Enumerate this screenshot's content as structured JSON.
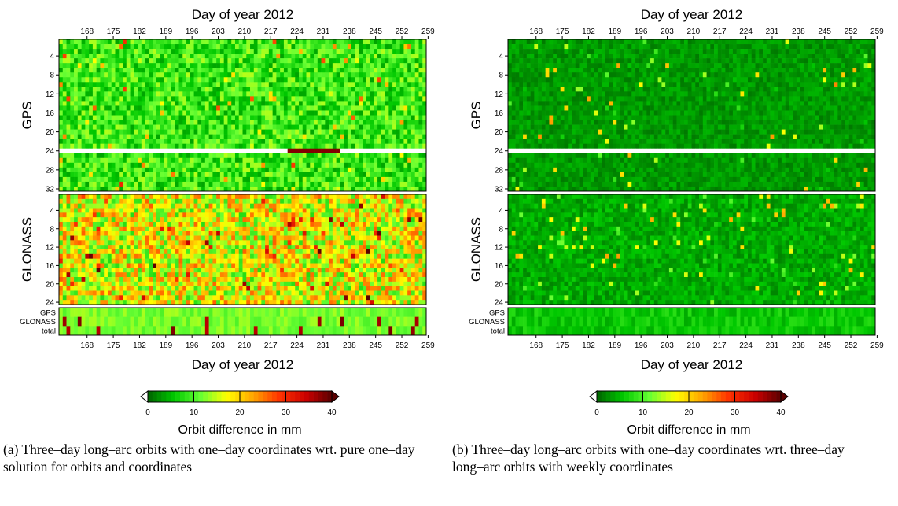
{
  "chart_data": [
    {
      "type": "heatmap",
      "x_title_top": "Day of year 2012",
      "x_title_bottom": "Day of year 2012",
      "x_ticks": [
        168,
        175,
        182,
        189,
        196,
        203,
        210,
        217,
        224,
        231,
        238,
        245,
        252,
        259
      ],
      "x_range": [
        161,
        259
      ],
      "blocks": [
        {
          "name": "GPS",
          "rows": 32,
          "y_ticks": [
            4,
            8,
            12,
            16,
            20,
            24,
            28,
            32
          ]
        },
        {
          "name": "GLONASS",
          "rows": 24,
          "y_ticks": [
            4,
            8,
            12,
            16,
            20,
            24
          ]
        },
        {
          "name": "summary",
          "row_labels": [
            "GPS",
            "GLONASS",
            "total"
          ]
        }
      ],
      "colorbar": {
        "ticks": [
          0,
          10,
          20,
          30,
          40
        ],
        "range": [
          0,
          40
        ],
        "colors": [
          "#006400",
          "#00c800",
          "#66ff33",
          "#ffff00",
          "#ffa500",
          "#ff3300",
          "#cc0000",
          "#5a0000"
        ],
        "label": "Orbit difference in mm"
      },
      "caption": "(a) Three–day long–arc orbits with one–day coordinates wrt. pure one–day solution for orbits and coordinates",
      "features": {
        "gps_missing_row": 24,
        "gps_highlight": {
          "row": 24,
          "x": [
            222,
            236
          ],
          "level": 38
        },
        "noise_level_gps": 9,
        "noise_level_glonass": 17
      }
    },
    {
      "type": "heatmap",
      "x_title_top": "Day of year 2012",
      "x_title_bottom": "Day of year 2012",
      "x_ticks": [
        168,
        175,
        182,
        189,
        196,
        203,
        210,
        217,
        224,
        231,
        238,
        245,
        252,
        259
      ],
      "x_range": [
        161,
        259
      ],
      "blocks": [
        {
          "name": "GPS",
          "rows": 32,
          "y_ticks": [
            4,
            8,
            12,
            16,
            20,
            24,
            28,
            32
          ]
        },
        {
          "name": "GLONASS",
          "rows": 24,
          "y_ticks": [
            4,
            8,
            12,
            16,
            20,
            24
          ]
        },
        {
          "name": "summary",
          "row_labels": [
            "GPS",
            "GLONASS",
            "total"
          ]
        }
      ],
      "colorbar": {
        "ticks": [
          0,
          10,
          20,
          30,
          40
        ],
        "range": [
          0,
          40
        ],
        "colors": [
          "#006400",
          "#00c800",
          "#66ff33",
          "#ffff00",
          "#ffa500",
          "#ff3300",
          "#cc0000",
          "#5a0000"
        ],
        "label": "Orbit difference in mm"
      },
      "caption": "(b) Three–day long–arc orbits with one–day coordinates wrt. three–day long–arc orbits with weekly coordinates",
      "features": {
        "gps_missing_row": 24,
        "noise_level_gps": 3,
        "noise_level_glonass": 4
      }
    }
  ]
}
